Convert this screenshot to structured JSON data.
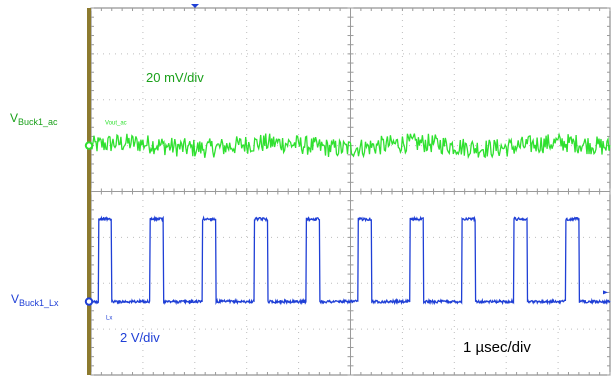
{
  "chart_data": {
    "type": "line",
    "title": "",
    "grid": true,
    "horizontal_divisions": 10,
    "vertical_divisions": 8,
    "time_per_div": "1 µsec/div",
    "x_range_us": [
      0,
      10
    ],
    "series": [
      {
        "name": "VBuck1_ac",
        "label_main": "V",
        "label_sub": "Buck1_ac",
        "trace_tag": "Vout_ac",
        "scale": "20 mV/div",
        "unit": "mV",
        "color": "#2fe02f",
        "ground_div": 3.0,
        "waveform": "noise",
        "mean": 0,
        "noise_pp": 6
      },
      {
        "name": "VBuck1_Lx",
        "label_main": "V",
        "label_sub": "Buck1_Lx",
        "trace_tag": "Lx",
        "scale": "2 V/div",
        "unit": "V",
        "color": "#1f3fd6",
        "ground_div": 6.4,
        "waveform": "square",
        "period_us": 1.0,
        "high_duration_us": 0.26,
        "first_rise_us": 0.14,
        "v_low": 0,
        "v_high": 3.6
      }
    ]
  }
}
